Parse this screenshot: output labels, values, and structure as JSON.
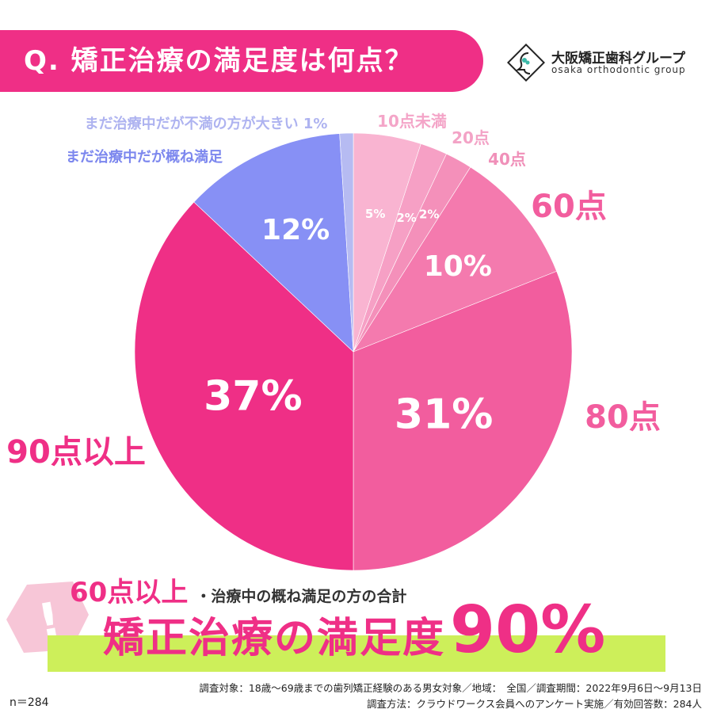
{
  "header": {
    "question": "Q. 矯正治療の満足度は何点？"
  },
  "logo": {
    "name": "大阪矯正歯科グループ",
    "sub": "osaka orthodontic group"
  },
  "colors": {
    "banner": "#ef2f86",
    "highlight": "#cdef5a",
    "pink_text": "#ef2f86",
    "blue_text": "#7c87ee",
    "lavender_text": "#aeb3f0"
  },
  "chart_data": {
    "type": "pie",
    "start": "top (12 o'clock)",
    "direction": "clockwise",
    "slices": [
      {
        "label": "10点未満",
        "value": 5,
        "value_label": "5%",
        "color": "#f9b4d1"
      },
      {
        "label": "20点",
        "value": 2,
        "value_label": "2%",
        "color": "#f6a0c5"
      },
      {
        "label": "40点",
        "value": 2,
        "value_label": "2%",
        "color": "#f490ba"
      },
      {
        "label": "60点",
        "value": 10,
        "value_label": "10%",
        "color": "#f47aae"
      },
      {
        "label": "80点",
        "value": 31,
        "value_label": "31%",
        "color": "#f25d9e"
      },
      {
        "label": "90点以上",
        "value": 37,
        "value_label": "37%",
        "color": "#ef2f86"
      },
      {
        "label": "まだ治療中だが概ね満足",
        "value": 12,
        "value_label": "12%",
        "color": "#8790f5"
      },
      {
        "label": "まだ治療中だが不満の方が大きい 1%",
        "value": 1,
        "value_label": "",
        "color": "#b6bbf2"
      }
    ]
  },
  "summary": {
    "line1_big": "60点以上",
    "line1_small": "・治療中の概ね満足の方の合計",
    "line2_text": "矯正治療の満足度",
    "line2_value": "90%"
  },
  "footer": {
    "line1": "調査対象：18歳〜69歳までの歯列矯正経験のある男女対象／地域：　全国／調査期間：2022年9月6日〜9月13日",
    "line2": "調査方法：クラウドワークス会員へのアンケート実施／有効回答数：284人",
    "n": "n＝284"
  }
}
